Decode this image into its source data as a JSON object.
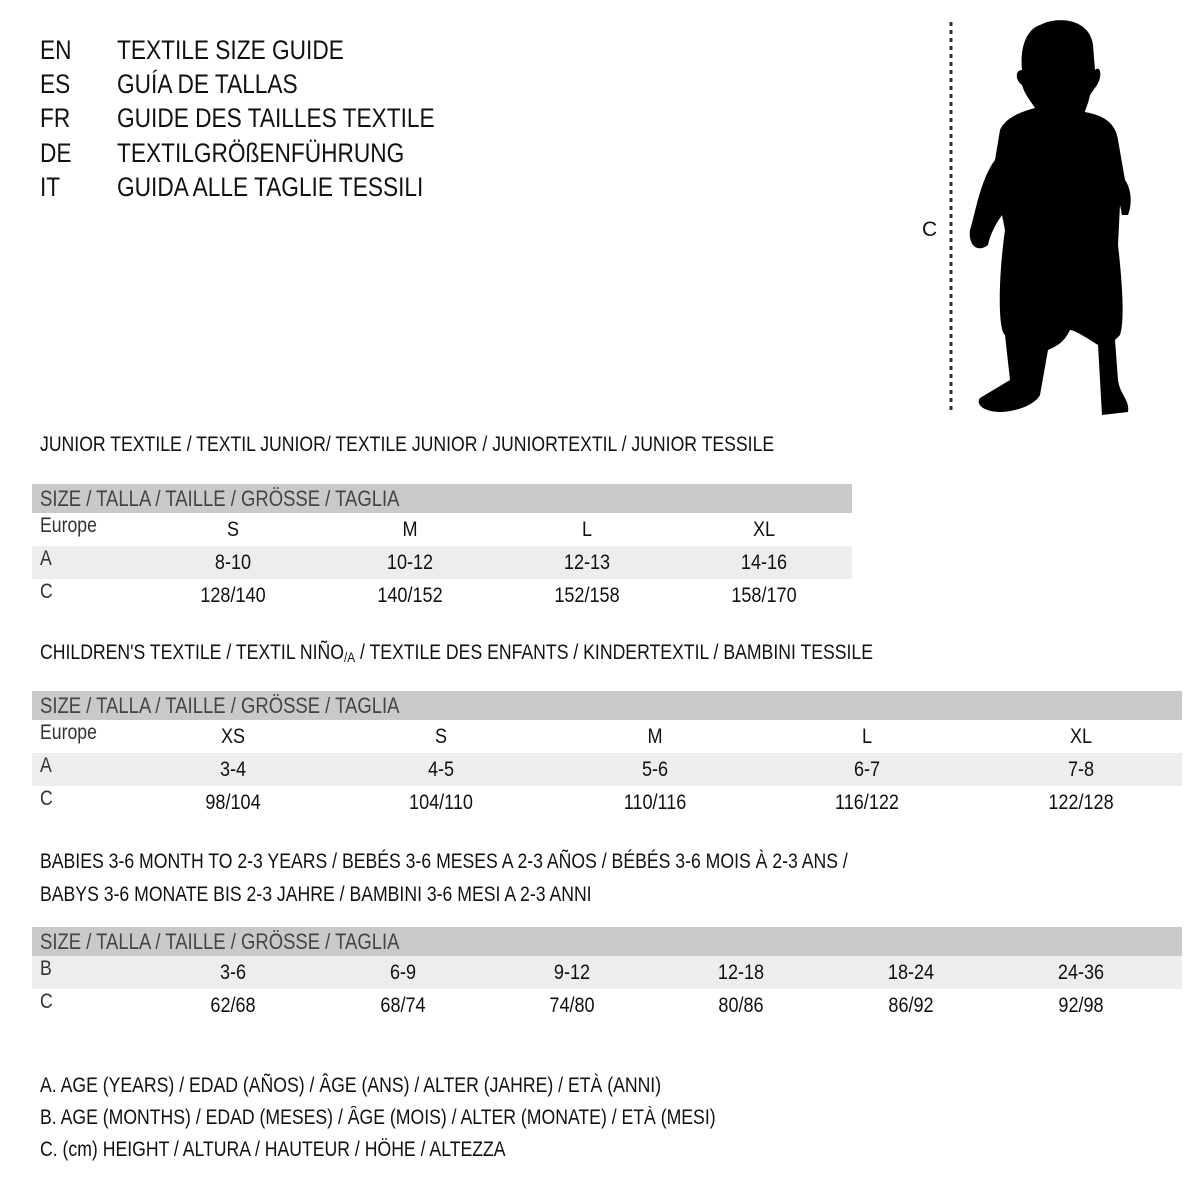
{
  "header": {
    "lines": [
      {
        "code": "EN",
        "title": "TEXTILE SIZE GUIDE"
      },
      {
        "code": "ES",
        "title": "GUÍA DE TALLAS"
      },
      {
        "code": "FR",
        "title": "GUIDE DES TAILLES TEXTILE"
      },
      {
        "code": "DE",
        "title": "TEXTILGRÖßENFÜHRUNG"
      },
      {
        "code": "IT",
        "title": "GUIDA ALLE TAGLIE TESSILI"
      }
    ]
  },
  "figure": {
    "measure_label": "C",
    "icon": "child-silhouette"
  },
  "junior": {
    "title": "JUNIOR TEXTILE / TEXTIL JUNIOR/ TEXTILE JUNIOR / JUNIORTEXTIL / JUNIOR TESSILE",
    "header": "SIZE / TALLA / TAILLE / GRÖSSE / TAGLIA",
    "rows": [
      {
        "label": "Europe",
        "values": [
          "S",
          "M",
          "L",
          "XL"
        ]
      },
      {
        "label": "A",
        "values": [
          "8-10",
          "10-12",
          "12-13",
          "14-16"
        ]
      },
      {
        "label": "C",
        "values": [
          "128/140",
          "140/152",
          "152/158",
          "158/170"
        ]
      }
    ]
  },
  "children": {
    "title_a": "CHILDREN'S TEXTILE / TEXTIL NIÑO",
    "title_sub": "/A",
    "title_b": " / TEXTILE DES ENFANTS / KINDERTEXTIL / BAMBINI TESSILE",
    "header": "SIZE / TALLA / TAILLE / GRÖSSE / TAGLIA",
    "rows": [
      {
        "label": "Europe",
        "values": [
          "XS",
          "S",
          "M",
          "L",
          "XL"
        ]
      },
      {
        "label": "A",
        "values": [
          "3-4",
          "4-5",
          "5-6",
          "6-7",
          "7-8"
        ]
      },
      {
        "label": "C",
        "values": [
          "98/104",
          "104/110",
          "110/116",
          "116/122",
          "122/128"
        ]
      }
    ]
  },
  "babies": {
    "title_line1": "BABIES 3-6 MONTH TO 2-3 YEARS / BEBÉS 3-6 MESES A 2-3 AÑOS / BÉBÉS 3-6 MOIS À 2-3 ANS /",
    "title_line2": "BABYS 3-6 MONATE BIS 2-3 JAHRE / BAMBINI 3-6 MESI A 2-3 ANNI",
    "header": "SIZE / TALLA / TAILLE / GRÖSSE / TAGLIA",
    "rows": [
      {
        "label": "B",
        "values": [
          "3-6",
          "6-9",
          "9-12",
          "12-18",
          "18-24",
          "24-36"
        ]
      },
      {
        "label": "C",
        "values": [
          "62/68",
          "68/74",
          "74/80",
          "80/86",
          "86/92",
          "92/98"
        ]
      }
    ]
  },
  "legend": [
    "A. AGE (YEARS) / EDAD (AÑOS) / ÂGE (ANS) / ALTER (JAHRE) / ETÀ (ANNI)",
    "B. AGE (MONTHS) / EDAD (MESES) / ÂGE (MOIS) / ALTER (MONATE) / ETÀ (MESI)",
    "C. (cm) HEIGHT / ALTURA / HAUTEUR / HÖHE / ALTEZZA"
  ],
  "colors": {
    "table_header": "#c9c9c9",
    "row_shade": "#ededed",
    "text": "#111111"
  }
}
